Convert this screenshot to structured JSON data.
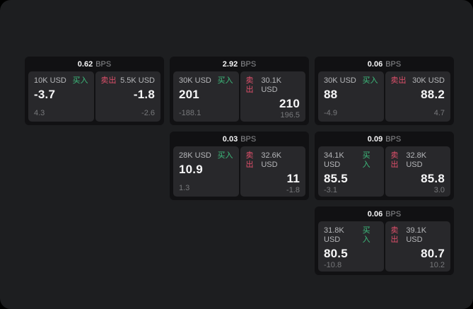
{
  "labels": {
    "bps_unit": "BPS",
    "buy": "买入",
    "sell": "卖出"
  },
  "colors": {
    "app_background": "#1d1e20",
    "card_background": "#111113",
    "panel_background": "#28282b",
    "buy_green": "#3dbd7d",
    "sell_red": "#e0506b",
    "price_white": "#f7f7f8",
    "muted_gray": "#77787b"
  },
  "cards": [
    {
      "bps_value": "0.62",
      "bps_unit": "BPS",
      "buy": {
        "amount": "10K USD",
        "label": "买入",
        "price": "-3.7",
        "sub": "4.3"
      },
      "sell": {
        "amount": "5.5K USD",
        "label": "卖出",
        "price": "-1.8",
        "sub": "-2.6"
      }
    },
    {
      "bps_value": "2.92",
      "bps_unit": "BPS",
      "buy": {
        "amount": "30K USD",
        "label": "买入",
        "price": "201",
        "sub": "-188.1"
      },
      "sell": {
        "amount": "30.1K USD",
        "label": "卖出",
        "price": "210",
        "sub": "196.5"
      }
    },
    {
      "bps_value": "0.06",
      "bps_unit": "BPS",
      "buy": {
        "amount": "30K USD",
        "label": "买入",
        "price": "88",
        "sub": "-4.9"
      },
      "sell": {
        "amount": "30K USD",
        "label": "卖出",
        "price": "88.2",
        "sub": "4.7"
      }
    },
    {
      "bps_value": "0.03",
      "bps_unit": "BPS",
      "buy": {
        "amount": "28K USD",
        "label": "买入",
        "price": "10.9",
        "sub": "1.3"
      },
      "sell": {
        "amount": "32.6K USD",
        "label": "卖出",
        "price": "11",
        "sub": "-1.8"
      }
    },
    {
      "bps_value": "0.09",
      "bps_unit": "BPS",
      "buy": {
        "amount": "34.1K USD",
        "label": "买入",
        "price": "85.5",
        "sub": "-3.1"
      },
      "sell": {
        "amount": "32.8K USD",
        "label": "卖出",
        "price": "85.8",
        "sub": "3.0"
      }
    },
    {
      "bps_value": "0.06",
      "bps_unit": "BPS",
      "buy": {
        "amount": "31.8K USD",
        "label": "买入",
        "price": "80.5",
        "sub": "-10.8"
      },
      "sell": {
        "amount": "39.1K USD",
        "label": "卖出",
        "price": "80.7",
        "sub": "10.2"
      }
    }
  ]
}
